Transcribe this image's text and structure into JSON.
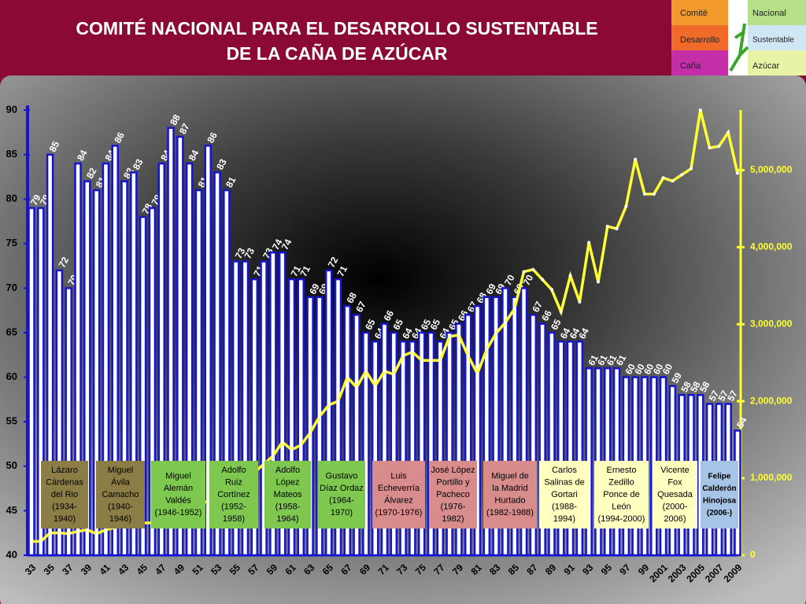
{
  "header": {
    "title_lines": [
      "COMITÉ NACIONAL PARA EL DESARROLLO SUSTENTABLE",
      "DE LA CAÑA DE AZÚCAR"
    ],
    "logo": [
      "Comité",
      "Nacional",
      "Desarrollo",
      "Sustentable",
      "Caña",
      "Azúcar"
    ]
  },
  "chart_data": {
    "type": "bar",
    "categories": [
      "33",
      null,
      "35",
      null,
      "37",
      null,
      "39",
      null,
      "41",
      null,
      "43",
      null,
      "45",
      null,
      "47",
      null,
      "49",
      null,
      "51",
      null,
      "53",
      null,
      "55",
      null,
      "57",
      null,
      "59",
      null,
      "61",
      null,
      "63",
      null,
      "65",
      null,
      "67",
      null,
      "69",
      null,
      "71",
      null,
      "73",
      null,
      "75",
      null,
      "77",
      null,
      "79",
      null,
      "81",
      null,
      "83",
      null,
      "85",
      null,
      "87",
      null,
      "89",
      null,
      "91",
      null,
      "93",
      null,
      "95",
      null,
      "97",
      null,
      "99",
      null,
      "2001",
      null,
      "2003",
      null,
      "2005",
      null,
      "2007",
      null,
      "2009"
    ],
    "series": [
      {
        "color": "#1414d2",
        "values": [
          79,
          79,
          85,
          72,
          70,
          84,
          82,
          81,
          84,
          86,
          82,
          83,
          78,
          79,
          84,
          88,
          87,
          84,
          81,
          86,
          83,
          81,
          73,
          73,
          71,
          73,
          74,
          74,
          71,
          71,
          69,
          69,
          72,
          71,
          68,
          67,
          65,
          64,
          66,
          65,
          64,
          64,
          65,
          65,
          64,
          65,
          66,
          67,
          68,
          69,
          69,
          70,
          69,
          70,
          67,
          66,
          65,
          64,
          64,
          64,
          61,
          61,
          61,
          61,
          60,
          60,
          60,
          60,
          60,
          59,
          58,
          58,
          58,
          57,
          57,
          57,
          54
        ]
      },
      {
        "color": "#ffff33",
        "axis": "y2",
        "values": [
          180000,
          180000,
          290000,
          290000,
          280000,
          310000,
          330000,
          280000,
          330000,
          360000,
          380000,
          400000,
          420000,
          420000,
          450000,
          500000,
          550000,
          600000,
          660000,
          700000,
          750000,
          850000,
          950000,
          1000000,
          1080000,
          1180000,
          1290000,
          1470000,
          1370000,
          1430000,
          1590000,
          1800000,
          1950000,
          2000000,
          2310000,
          2180000,
          2390000,
          2200000,
          2390000,
          2350000,
          2590000,
          2640000,
          2530000,
          2530000,
          2530000,
          2840000,
          2860000,
          2590000,
          2360000,
          2670000,
          2880000,
          3020000,
          3200000,
          3680000,
          3710000,
          3580000,
          3450000,
          3160000,
          3630000,
          3290000,
          4060000,
          3550000,
          4270000,
          4240000,
          4530000,
          5140000,
          4690000,
          4690000,
          4900000,
          4860000,
          4940000,
          5020000,
          5780000,
          5290000,
          5310000,
          5490000,
          4960000
        ]
      }
    ],
    "ylim": [
      40,
      90
    ],
    "yticks": [
      40,
      45,
      50,
      55,
      60,
      65,
      70,
      75,
      80,
      85,
      90
    ],
    "y2lim": [
      0,
      5780000
    ],
    "y2ticks": [
      0,
      {
        "value": 1000000,
        "label": "1,000,000"
      },
      {
        "value": 2000000,
        "label": "2,000,000"
      },
      {
        "value": 3000000,
        "label": "3,000,000"
      },
      {
        "value": 4000000,
        "label": "4,000,000"
      },
      {
        "value": 5000000,
        "label": "5,000,000"
      }
    ],
    "annotations": [
      {
        "color": "#8c7c45",
        "lines": [
          "Lázaro",
          "Cárdenas",
          "del Rio",
          "(1934-",
          "1940)"
        ]
      },
      {
        "color": "#8c7c45",
        "lines": [
          "Miguel",
          "Ávila",
          "Camacho",
          "(1940-",
          "1946)"
        ]
      },
      {
        "color": "#7ec850",
        "lines": [
          "Miguel",
          "Alemán",
          "Valdés",
          "(1946-1952)"
        ]
      },
      {
        "color": "#7ec850",
        "lines": [
          "Adolfo",
          "Ruiz",
          "Cortínez",
          "(1952-",
          "1958)"
        ]
      },
      {
        "color": "#7ec850",
        "lines": [
          "Adolfo",
          "López",
          "Mateos",
          "(1958-",
          "1964)"
        ]
      },
      {
        "color": "#7ec850",
        "lines": [
          "Gustavo",
          "Díaz Ordaz",
          "(1964-",
          "1970)"
        ]
      },
      {
        "color": "#d98c8c",
        "lines": [
          "Luis",
          "Echeverría",
          "Álvarez",
          "(1970-1976)"
        ]
      },
      {
        "color": "#d98c8c",
        "lines": [
          "José López",
          "Portillo y",
          "Pacheco",
          "(1976-",
          "1982)"
        ]
      },
      {
        "color": "#d98c8c",
        "lines": [
          "Miguel de",
          "la Madrid",
          "Hurtado",
          "(1982-1988)"
        ]
      },
      {
        "color": "#ffffc0",
        "lines": [
          "Carlos",
          "Salinas de",
          "Gortari",
          "(1988-",
          "1994)"
        ]
      },
      {
        "color": "#ffffc0",
        "lines": [
          "Ernesto",
          "Zedillo",
          "Ponce de",
          "León",
          "(1994-2000)"
        ]
      },
      {
        "color": "#ffffc0",
        "lines": [
          "Vicente",
          "Fox",
          "Quesada",
          "(2000-",
          "2006)"
        ]
      },
      {
        "color": "#a6c4e6",
        "lines": [
          "Felipe",
          "Calderón",
          "Hinojosa",
          "(2006-)"
        ]
      }
    ]
  }
}
